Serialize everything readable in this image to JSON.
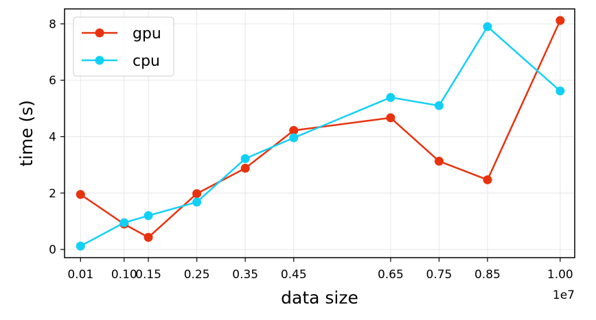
{
  "chart_data": {
    "type": "line",
    "xlabel": "data size",
    "ylabel": "time (s)",
    "x_offset_label": "1e7",
    "x": [
      0.01,
      0.1,
      0.15,
      0.25,
      0.35,
      0.45,
      0.65,
      0.75,
      0.85,
      1.0
    ],
    "x_tick_labels": [
      "0.01",
      "0.10",
      "0.15",
      "0.25",
      "0.35",
      "0.45",
      "0.65",
      "0.75",
      "0.85",
      "1.00"
    ],
    "xlim": [
      -0.023,
      1.03
    ],
    "y_ticks": [
      0,
      2,
      4,
      6,
      8
    ],
    "ylim": [
      -0.29,
      8.53
    ],
    "grid": true,
    "legend_position": "upper left",
    "series": [
      {
        "name": "gpu",
        "color": "#e8320e",
        "values": [
          1.95,
          0.9,
          0.43,
          1.98,
          2.88,
          4.22,
          4.67,
          3.13,
          2.47,
          8.12
        ]
      },
      {
        "name": "cpu",
        "color": "#12d0f5",
        "values": [
          0.12,
          0.95,
          1.2,
          1.68,
          3.22,
          3.96,
          5.39,
          5.1,
          7.9,
          5.62
        ]
      }
    ]
  }
}
